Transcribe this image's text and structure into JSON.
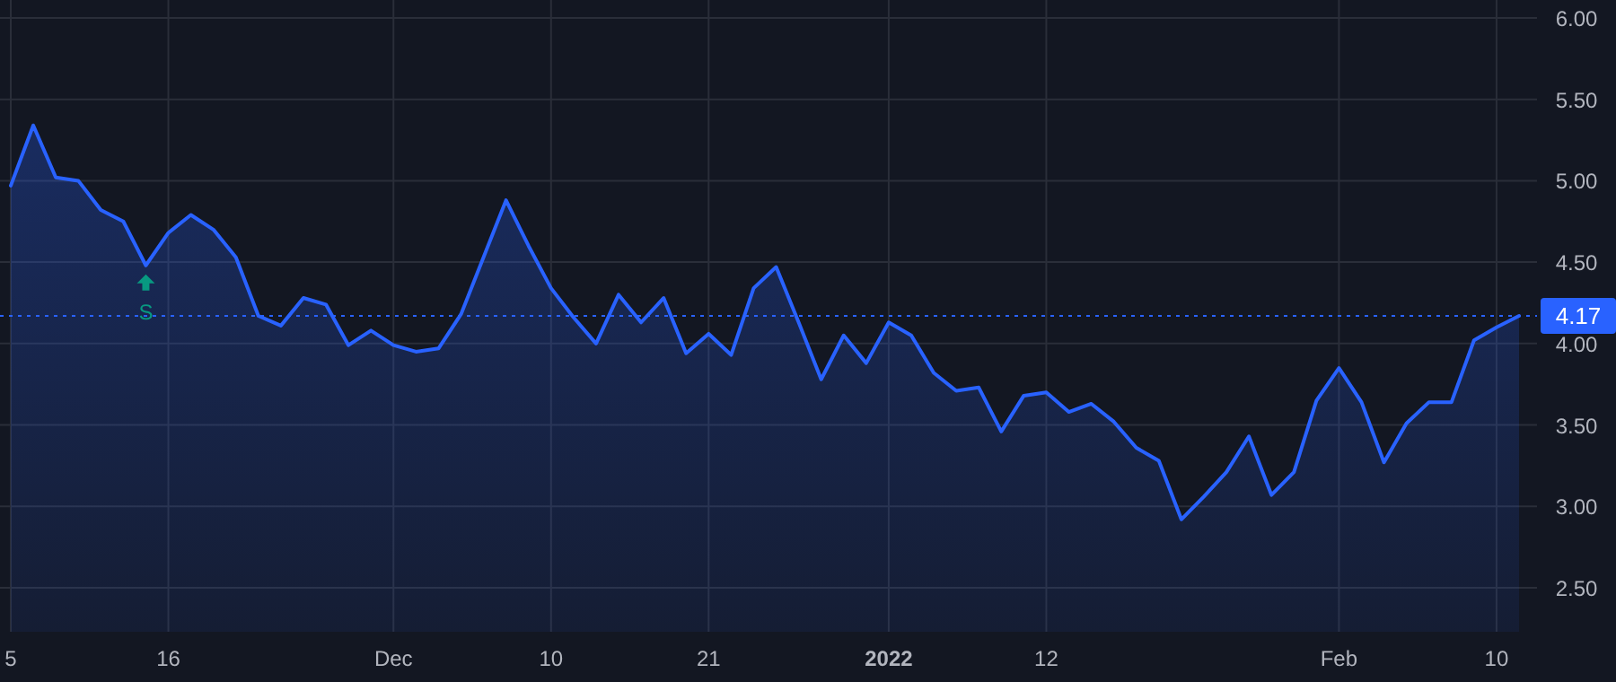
{
  "chart_data": {
    "type": "area",
    "categories": [
      "5",
      null,
      null,
      null,
      null,
      null,
      null,
      "16",
      null,
      null,
      null,
      null,
      null,
      null,
      null,
      null,
      null,
      "Dec",
      null,
      null,
      null,
      null,
      null,
      null,
      "10",
      null,
      null,
      null,
      null,
      null,
      null,
      "21",
      null,
      null,
      null,
      null,
      null,
      null,
      null,
      "2022",
      null,
      null,
      null,
      null,
      null,
      null,
      "12",
      null,
      null,
      null,
      null,
      null,
      null,
      null,
      null,
      null,
      null,
      null,
      null,
      "Feb",
      null,
      null,
      null,
      null,
      null,
      null,
      "10",
      null
    ],
    "series": [
      {
        "color": "#2962ff",
        "values": [
          4.97,
          5.34,
          5.02,
          5.0,
          4.82,
          4.75,
          4.48,
          4.68,
          4.79,
          4.7,
          4.53,
          4.17,
          4.11,
          4.28,
          4.24,
          3.99,
          4.08,
          3.99,
          3.95,
          3.97,
          4.18,
          4.53,
          4.88,
          4.6,
          4.34,
          4.16,
          4.0,
          4.3,
          4.13,
          4.28,
          3.94,
          4.06,
          3.93,
          4.34,
          4.47,
          4.13,
          3.78,
          4.05,
          3.88,
          4.13,
          4.05,
          3.82,
          3.71,
          3.73,
          3.46,
          3.68,
          3.7,
          3.58,
          3.63,
          3.52,
          3.36,
          3.28,
          2.92,
          3.06,
          3.21,
          3.43,
          3.07,
          3.21,
          3.65,
          3.85,
          3.64,
          3.27,
          3.51,
          3.64,
          3.64,
          4.02,
          4.1,
          4.17
        ]
      }
    ],
    "ylim": [
      2.23,
      6.11
    ],
    "yticks": [
      {
        "value": 2.5,
        "label": "2.50"
      },
      {
        "value": 3,
        "label": "3.00"
      },
      {
        "value": 3.5,
        "label": "3.50"
      },
      {
        "value": 4,
        "label": "4.00"
      },
      {
        "value": 4.5,
        "label": "4.50"
      },
      {
        "value": 5,
        "label": "5.00"
      },
      {
        "value": 5.5,
        "label": "5.50"
      },
      {
        "value": 6,
        "label": "6.00"
      }
    ],
    "grid": true,
    "line_style": "solid",
    "ref_lines": [
      {
        "axis": "y",
        "value": 4.17,
        "label": "4.17",
        "color": "#2962ff",
        "line_style": "dotted"
      }
    ],
    "annotations": [
      {
        "text": "S",
        "y": 4.48
      }
    ]
  }
}
